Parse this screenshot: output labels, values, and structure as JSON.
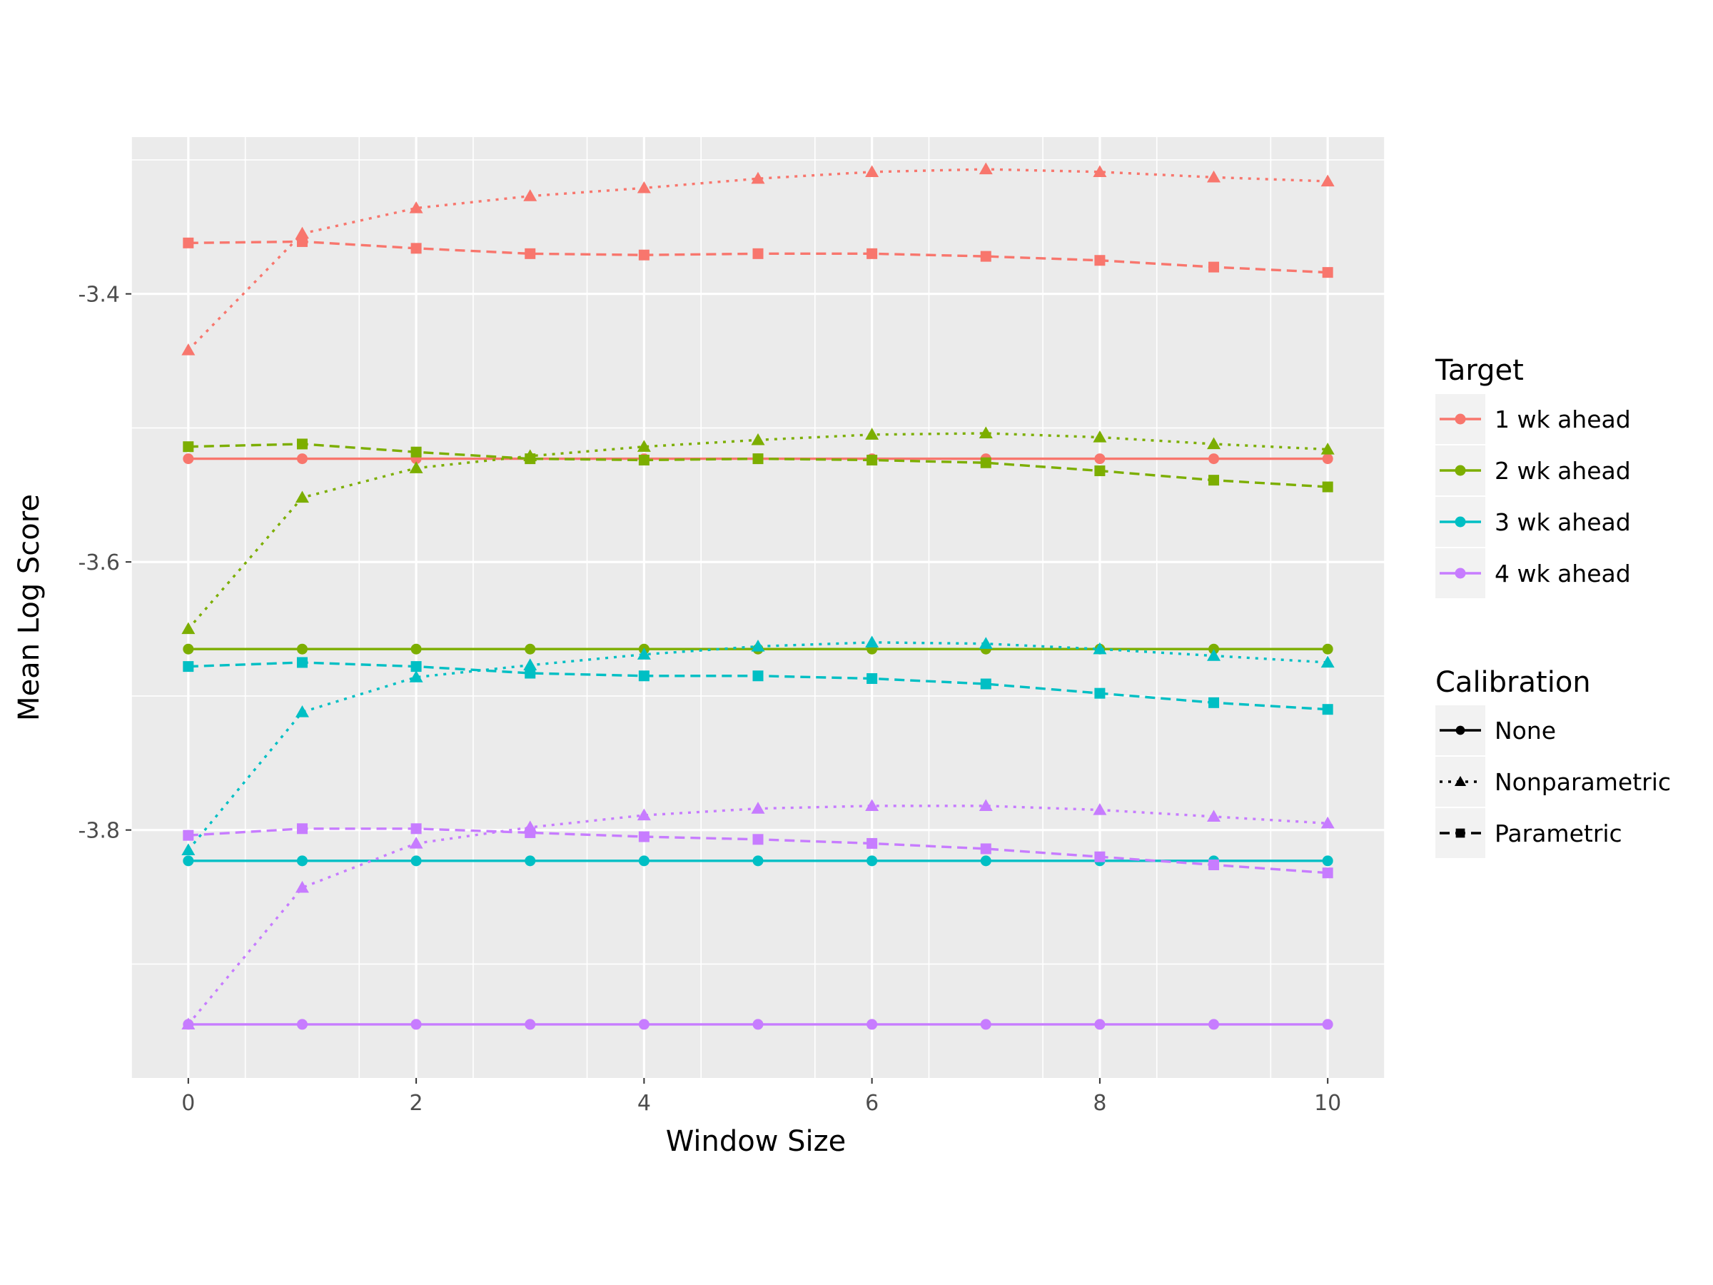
{
  "chart_data": {
    "type": "line",
    "xlabel": "Window Size",
    "ylabel": "Mean Log Score",
    "xlim": [
      -0.5,
      10.5
    ],
    "ylim": [
      -3.985,
      -3.283
    ],
    "xticks": [
      0,
      2,
      4,
      6,
      8,
      10
    ],
    "yticks": [
      -3.4,
      -3.6,
      -3.8
    ],
    "ytick_labels": [
      "-3.4",
      "-3.6",
      "-3.8"
    ],
    "grid": true,
    "legend_position": "right",
    "x": [
      0,
      1,
      2,
      3,
      4,
      5,
      6,
      7,
      8,
      9,
      10
    ],
    "legend": {
      "target_title": "Target",
      "targets": [
        {
          "label": "1 wk ahead",
          "color": "#F8766D"
        },
        {
          "label": "2 wk ahead",
          "color": "#7CAE00"
        },
        {
          "label": "3 wk ahead",
          "color": "#00BFC4"
        },
        {
          "label": "4 wk ahead",
          "color": "#C77CFF"
        }
      ],
      "calibration_title": "Calibration",
      "calibrations": [
        {
          "label": "None",
          "shape": "circle",
          "dash": "solid"
        },
        {
          "label": "Nonparametric",
          "shape": "triangle",
          "dash": "dotted"
        },
        {
          "label": "Parametric",
          "shape": "square",
          "dash": "dashed"
        }
      ]
    },
    "series": [
      {
        "target": 0,
        "calibration": 0,
        "values": [
          -3.523,
          -3.523,
          -3.523,
          -3.523,
          -3.523,
          -3.523,
          -3.523,
          -3.523,
          -3.523,
          -3.523,
          -3.523
        ]
      },
      {
        "target": 0,
        "calibration": 1,
        "values": [
          -3.442,
          -3.355,
          -3.336,
          -3.327,
          -3.321,
          -3.314,
          -3.309,
          -3.307,
          -3.309,
          -3.313,
          -3.316
        ]
      },
      {
        "target": 0,
        "calibration": 2,
        "values": [
          -3.362,
          -3.361,
          -3.366,
          -3.37,
          -3.371,
          -3.37,
          -3.37,
          -3.372,
          -3.375,
          -3.38,
          -3.384
        ]
      },
      {
        "target": 1,
        "calibration": 0,
        "values": [
          -3.665,
          -3.665,
          -3.665,
          -3.665,
          -3.665,
          -3.665,
          -3.665,
          -3.665,
          -3.665,
          -3.665,
          -3.665
        ]
      },
      {
        "target": 1,
        "calibration": 1,
        "values": [
          -3.65,
          -3.552,
          -3.53,
          -3.521,
          -3.514,
          -3.509,
          -3.505,
          -3.504,
          -3.507,
          -3.512,
          -3.516
        ]
      },
      {
        "target": 1,
        "calibration": 2,
        "values": [
          -3.514,
          -3.512,
          -3.518,
          -3.523,
          -3.524,
          -3.523,
          -3.524,
          -3.526,
          -3.532,
          -3.539,
          -3.544
        ]
      },
      {
        "target": 2,
        "calibration": 0,
        "values": [
          -3.823,
          -3.823,
          -3.823,
          -3.823,
          -3.823,
          -3.823,
          -3.823,
          -3.823,
          -3.823,
          -3.823,
          -3.823
        ]
      },
      {
        "target": 2,
        "calibration": 1,
        "values": [
          -3.815,
          -3.712,
          -3.686,
          -3.677,
          -3.669,
          -3.663,
          -3.66,
          -3.661,
          -3.665,
          -3.67,
          -3.675
        ]
      },
      {
        "target": 2,
        "calibration": 2,
        "values": [
          -3.678,
          -3.675,
          -3.678,
          -3.683,
          -3.685,
          -3.685,
          -3.687,
          -3.691,
          -3.698,
          -3.705,
          -3.71
        ]
      },
      {
        "target": 3,
        "calibration": 0,
        "values": [
          -3.945,
          -3.945,
          -3.945,
          -3.945,
          -3.945,
          -3.945,
          -3.945,
          -3.945,
          -3.945,
          -3.945,
          -3.945
        ]
      },
      {
        "target": 3,
        "calibration": 1,
        "values": [
          -3.945,
          -3.843,
          -3.81,
          -3.798,
          -3.789,
          -3.784,
          -3.782,
          -3.782,
          -3.785,
          -3.79,
          -3.795
        ]
      },
      {
        "target": 3,
        "calibration": 2,
        "values": [
          -3.804,
          -3.799,
          -3.799,
          -3.802,
          -3.805,
          -3.807,
          -3.81,
          -3.814,
          -3.82,
          -3.826,
          -3.832
        ]
      }
    ]
  }
}
